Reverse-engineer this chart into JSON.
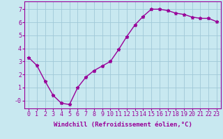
{
  "x": [
    0,
    1,
    2,
    3,
    4,
    5,
    6,
    7,
    8,
    9,
    10,
    11,
    12,
    13,
    14,
    15,
    16,
    17,
    18,
    19,
    20,
    21,
    22,
    23
  ],
  "y": [
    3.3,
    2.7,
    1.5,
    0.4,
    -0.2,
    -0.3,
    1.0,
    1.8,
    2.3,
    2.65,
    3.0,
    3.9,
    4.9,
    5.8,
    6.45,
    7.0,
    7.0,
    6.9,
    6.7,
    6.6,
    6.4,
    6.3,
    6.3,
    6.05
  ],
  "color": "#990099",
  "bg_color": "#c8e8f0",
  "grid_color": "#a0c8d8",
  "xlabel": "Windchill (Refroidissement éolien,°C)",
  "xlim": [
    -0.5,
    23.5
  ],
  "ylim": [
    -0.6,
    7.6
  ],
  "yticks": [
    0,
    1,
    2,
    3,
    4,
    5,
    6,
    7
  ],
  "ytick_labels": [
    "-0",
    "1",
    "2",
    "3",
    "4",
    "5",
    "6",
    "7"
  ],
  "xticks": [
    0,
    1,
    2,
    3,
    4,
    5,
    6,
    7,
    8,
    9,
    10,
    11,
    12,
    13,
    14,
    15,
    16,
    17,
    18,
    19,
    20,
    21,
    22,
    23
  ],
  "marker": "*",
  "markersize": 3.5,
  "linewidth": 1.0,
  "xlabel_fontsize": 6.5,
  "tick_fontsize": 6.0
}
